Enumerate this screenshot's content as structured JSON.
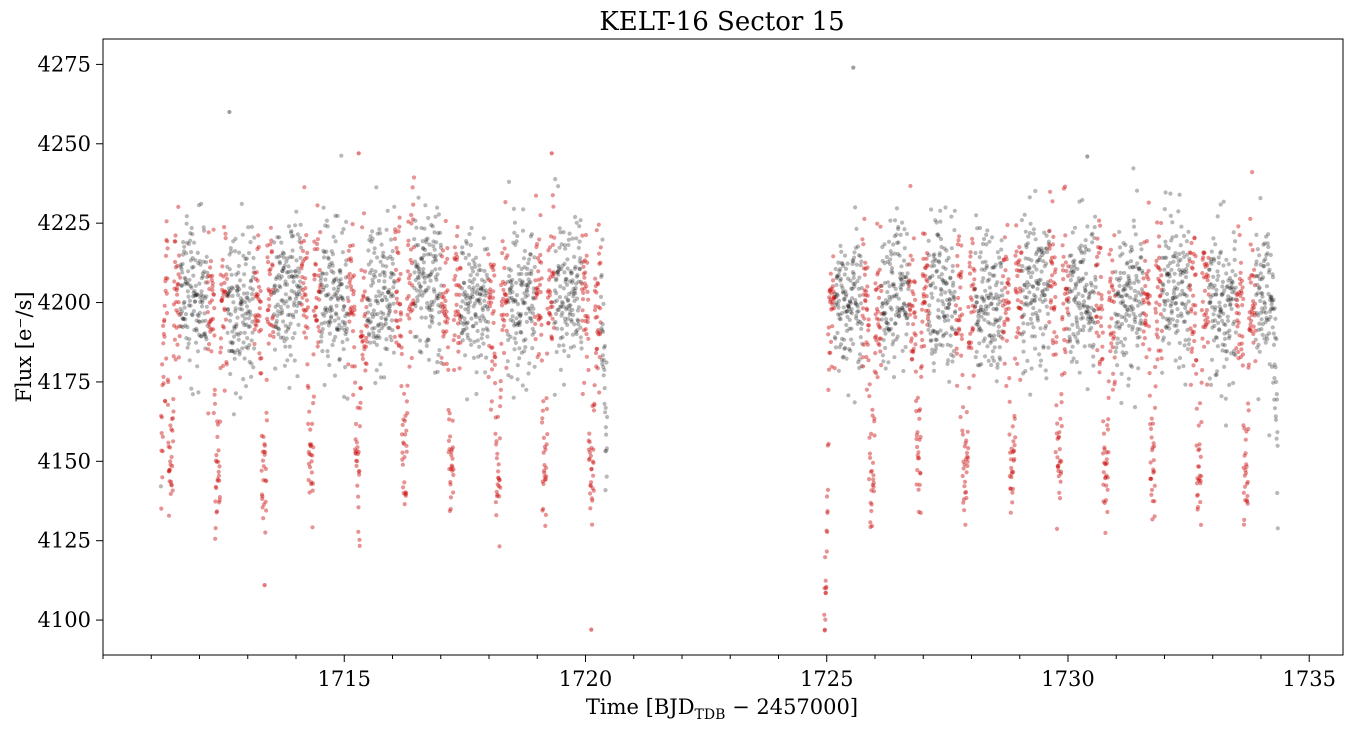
{
  "chart_data": {
    "type": "scatter",
    "title": "KELT-16 Sector 15",
    "xlabel": {
      "prefix": "Time [BJD",
      "subscript": "TDB",
      "suffix": " − 2457000]"
    },
    "ylabel": "Flux [e⁻/s]",
    "xlim": [
      1710.0,
      1735.7
    ],
    "ylim": [
      4089,
      4283
    ],
    "x_ticks": [
      1715,
      1720,
      1725,
      1730,
      1735
    ],
    "x_tick_labels": [
      "1715",
      "1720",
      "1725",
      "1730",
      "1735"
    ],
    "x_minor_step": 1,
    "y_ticks": [
      4100,
      4125,
      4150,
      4175,
      4200,
      4225,
      4250,
      4275
    ],
    "y_tick_labels": [
      "4100",
      "4125",
      "4150",
      "4175",
      "4200",
      "4225",
      "4250",
      "4275"
    ],
    "grid": false,
    "legend": "none",
    "orbit_segments": [
      {
        "start": 1711.2,
        "end": 1720.45
      },
      {
        "start": 1724.95,
        "end": 1734.35
      }
    ],
    "baseline_flux": 4202,
    "scatter_std": 12,
    "transit_period": 0.969,
    "transit_epoch": 1712.37,
    "transit_duration": 0.085,
    "transit_depth": 55,
    "highlight_window": 0.2,
    "outliers": [
      {
        "x": 1712.62,
        "y": 4260
      },
      {
        "x": 1725.55,
        "y": 4274
      },
      {
        "x": 1720.12,
        "y": 4097
      },
      {
        "x": 1713.35,
        "y": 4111
      },
      {
        "x": 1715.3,
        "y": 4247
      },
      {
        "x": 1719.3,
        "y": 4247
      },
      {
        "x": 1730.4,
        "y": 4246
      }
    ],
    "series": [
      {
        "name": "",
        "role": "out-of-transit",
        "color": "#000000",
        "opacity": 0.28
      },
      {
        "name": "",
        "role": "in-transit window",
        "color": "#cc1010",
        "opacity": 0.45
      }
    ]
  }
}
